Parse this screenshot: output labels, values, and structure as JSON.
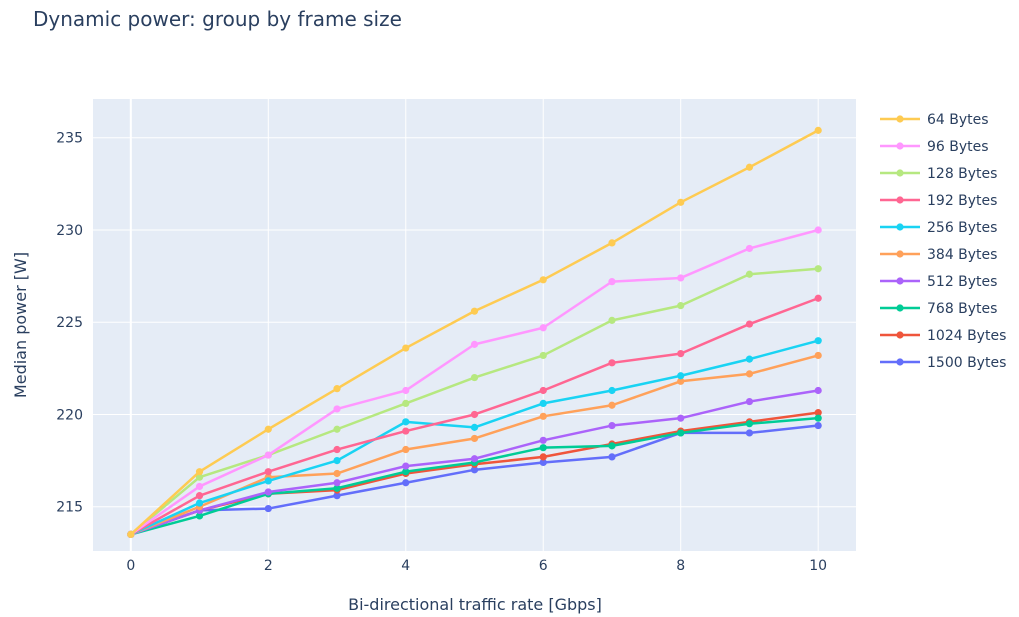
{
  "chart_data": {
    "type": "line",
    "title": "Dynamic power: group by frame size",
    "xlabel": "Bi-directional traffic rate [Gbps]",
    "ylabel": "Median power [W]",
    "xlim": [
      -0.55,
      10.55
    ],
    "ylim": [
      212.6,
      237.1
    ],
    "x_ticks": [
      0,
      2,
      4,
      6,
      8,
      10
    ],
    "y_ticks": [
      215,
      220,
      225,
      230,
      235
    ],
    "grid": true,
    "legend_position": "right",
    "x": [
      0,
      1,
      2,
      3,
      4,
      5,
      6,
      7,
      8,
      9,
      10
    ],
    "series": [
      {
        "name": "64 Bytes",
        "color": "#FECB52",
        "values": [
          213.5,
          216.9,
          219.2,
          221.4,
          223.6,
          225.6,
          227.3,
          229.3,
          231.5,
          233.4,
          235.4
        ]
      },
      {
        "name": "96 Bytes",
        "color": "#FF97FF",
        "values": [
          213.5,
          216.1,
          217.8,
          220.3,
          221.3,
          223.8,
          224.7,
          227.2,
          227.4,
          229.0,
          230.0
        ]
      },
      {
        "name": "128 Bytes",
        "color": "#B6E880",
        "values": [
          213.5,
          216.6,
          217.8,
          219.2,
          220.6,
          222.0,
          223.2,
          225.1,
          225.9,
          227.6,
          227.9
        ]
      },
      {
        "name": "192 Bytes",
        "color": "#FF6692",
        "values": [
          213.5,
          215.6,
          216.9,
          218.1,
          219.1,
          220.0,
          221.3,
          222.8,
          223.3,
          224.9,
          226.3
        ]
      },
      {
        "name": "256 Bytes",
        "color": "#19D3F3",
        "values": [
          213.5,
          215.2,
          216.4,
          217.5,
          219.6,
          219.3,
          220.6,
          221.3,
          222.1,
          223.0,
          224.0
        ]
      },
      {
        "name": "384 Bytes",
        "color": "#FFA15A",
        "values": [
          213.5,
          215.0,
          216.6,
          216.8,
          218.1,
          218.7,
          219.9,
          220.5,
          221.8,
          222.2,
          223.2
        ]
      },
      {
        "name": "512 Bytes",
        "color": "#AB63FA",
        "values": [
          213.5,
          214.8,
          215.8,
          216.3,
          217.2,
          217.6,
          218.6,
          219.4,
          219.8,
          220.7,
          221.3
        ]
      },
      {
        "name": "768 Bytes",
        "color": "#00CC96",
        "values": [
          213.5,
          214.5,
          215.7,
          216.0,
          216.9,
          217.4,
          218.2,
          218.3,
          219.0,
          219.5,
          219.8
        ]
      },
      {
        "name": "1024 Bytes",
        "color": "#EF553B",
        "values": [
          213.5,
          214.8,
          215.7,
          215.9,
          216.8,
          217.3,
          217.7,
          218.4,
          219.1,
          219.6,
          220.1
        ]
      },
      {
        "name": "1500 Bytes",
        "color": "#636EFA",
        "values": [
          213.5,
          214.8,
          214.9,
          215.6,
          216.3,
          217.0,
          217.4,
          217.7,
          219.0,
          219.0,
          219.4
        ]
      }
    ]
  }
}
